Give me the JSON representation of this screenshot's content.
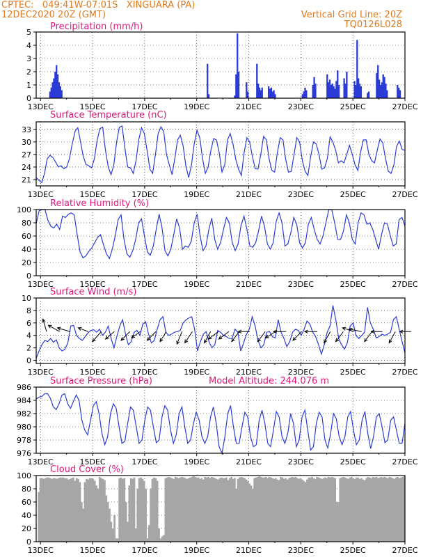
{
  "header": {
    "line1": "CPTEC:   049:41W-07:01S   XINGUARA (PA)",
    "line2": "12DEC2020 20Z (GMT)",
    "right1": "Vertical Grid Line: 20Z",
    "right2": "TQ0126L028"
  },
  "colors": {
    "series": "#2a3bd6",
    "cloud": "#a6a6a6",
    "title": "#e0177a",
    "header": "#e07a1f",
    "arrow": "#000000"
  },
  "x_ticks": [
    "13DEC",
    "15DEC",
    "17DEC",
    "19DEC",
    "21DEC",
    "23DEC",
    "25DEC",
    "27DEC"
  ],
  "chart_data": [
    {
      "id": "precip",
      "type": "bar",
      "title": "Precipitation (mm/h)",
      "ylim": [
        0,
        5
      ],
      "yticks": [
        "0",
        "1",
        "2",
        "3",
        "4",
        "5"
      ],
      "x_range": [
        "12DEC 20Z",
        "27DEC 00Z"
      ],
      "grid": true,
      "bursts": [
        {
          "x": 0.5,
          "y": [
            0.5,
            0.8,
            1.2,
            1.5,
            2.0,
            2.5,
            1.8,
            1.2,
            0.9,
            0.6
          ]
        },
        {
          "x": 6.55,
          "y": [
            2.6,
            0.3
          ]
        },
        {
          "x": 7.6,
          "y": [
            0.2,
            1.8,
            4.9,
            2.0
          ]
        },
        {
          "x": 8.05,
          "y": [
            1.2,
            0.5
          ]
        },
        {
          "x": 8.45,
          "y": [
            2.6,
            1.1,
            0.8,
            0.6,
            0.8
          ]
        },
        {
          "x": 8.9,
          "y": [
            0.9,
            0.7,
            0.8,
            0.5,
            0.6,
            0.3
          ]
        },
        {
          "x": 10.2,
          "y": [
            0.3,
            0.5,
            0.8,
            0.6
          ]
        },
        {
          "x": 10.6,
          "y": [
            1.0,
            1.6,
            1.1
          ]
        },
        {
          "x": 11.15,
          "y": [
            1.8,
            1.2,
            1.4,
            1.0,
            1.1,
            0.9,
            0.7,
            1.3,
            2.1,
            1.0
          ]
        },
        {
          "x": 11.8,
          "y": [
            1.5,
            1.1,
            2.0
          ]
        },
        {
          "x": 12.2,
          "y": [
            1.3,
            1.0,
            4.4,
            1.5,
            1.1,
            0.9
          ]
        },
        {
          "x": 12.7,
          "y": [
            0.4,
            0.5
          ]
        },
        {
          "x": 13.05,
          "y": [
            1.9,
            2.5,
            1.4,
            1.0,
            1.2,
            1.8,
            1.6,
            1.1,
            0.6
          ]
        },
        {
          "x": 13.85,
          "y": [
            1.0,
            0.8,
            0.6
          ]
        }
      ]
    },
    {
      "id": "temp",
      "type": "line",
      "title": "Surface Temperature (nC)",
      "ylim": [
        19.5,
        34.8
      ],
      "yticks": [
        "21",
        "24",
        "27",
        "30",
        "33"
      ],
      "x_range": [
        "12DEC 20Z",
        "27DEC 00Z"
      ],
      "grid": true,
      "values": [
        21.5,
        20.8,
        20.3,
        22.5,
        26.0,
        26.8,
        26.3,
        25.2,
        24.0,
        24.3,
        23.6,
        24.0,
        26.0,
        29.5,
        32.5,
        33.4,
        30.0,
        26.5,
        24.6,
        24.3,
        23.8,
        26.0,
        30.5,
        33.2,
        33.5,
        28.0,
        24.0,
        22.2,
        24.5,
        30.0,
        33.5,
        33.8,
        28.5,
        24.0,
        23.8,
        22.5,
        25.5,
        30.5,
        33.4,
        32.0,
        28.0,
        23.5,
        22.5,
        27.0,
        32.0,
        33.6,
        32.5,
        27.0,
        24.5,
        22.2,
        26.0,
        30.5,
        31.6,
        29.0,
        24.2,
        21.5,
        24.5,
        29.5,
        32.8,
        31.0,
        26.0,
        22.5,
        24.0,
        28.0,
        30.8,
        30.5,
        27.5,
        22.8,
        24.5,
        30.5,
        32.0,
        29.5,
        25.8,
        23.5,
        22.0,
        27.5,
        31.0,
        30.0,
        26.5,
        23.6,
        23.5,
        27.0,
        31.3,
        30.5,
        26.0,
        23.2,
        22.8,
        27.5,
        31.0,
        30.5,
        25.8,
        22.8,
        23.0,
        27.0,
        31.0,
        30.0,
        25.5,
        23.0,
        22.0,
        26.5,
        30.0,
        29.5,
        27.0,
        23.5,
        23.8,
        26.0,
        31.2,
        30.0,
        28.0,
        25.0,
        25.5,
        25.0,
        27.0,
        29.2,
        27.0,
        24.5,
        23.2,
        27.5,
        30.5,
        30.5,
        27.0,
        25.5,
        25.0,
        28.0,
        30.7,
        29.8,
        26.0,
        23.0,
        22.5,
        24.5,
        29.0,
        30.2,
        28.2,
        28.0
      ]
    },
    {
      "id": "rh",
      "type": "line",
      "title": "Relative Humidity (%)",
      "ylim": [
        0,
        100
      ],
      "yticks": [
        "0",
        "20",
        "40",
        "60",
        "80",
        "100"
      ],
      "x_range": [
        "12DEC 20Z",
        "27DEC 00Z"
      ],
      "grid": true,
      "values": [
        79,
        98,
        100,
        100,
        84,
        75,
        72,
        78,
        70,
        90,
        88,
        93,
        95,
        92,
        62,
        36,
        27,
        30,
        37,
        42,
        50,
        58,
        62,
        47,
        33,
        26,
        40,
        60,
        85,
        92,
        55,
        33,
        28,
        38,
        55,
        80,
        86,
        60,
        36,
        31,
        45,
        70,
        93,
        72,
        38,
        30,
        40,
        62,
        86,
        72,
        40,
        45,
        43,
        52,
        80,
        93,
        60,
        38,
        45,
        70,
        87,
        55,
        40,
        50,
        70,
        88,
        80,
        50,
        38,
        48,
        76,
        90,
        70,
        45,
        43,
        50,
        68,
        90,
        75,
        48,
        40,
        50,
        82,
        95,
        80,
        45,
        48,
        65,
        88,
        78,
        50,
        42,
        50,
        78,
        88,
        70,
        55,
        48,
        60,
        80,
        100,
        100,
        80,
        55,
        55,
        68,
        92,
        80,
        55,
        48,
        80,
        95,
        92,
        78,
        80,
        70,
        55,
        40,
        62,
        80,
        78,
        60,
        45,
        48,
        85,
        88,
        75
      ]
    },
    {
      "id": "wind",
      "type": "line",
      "title": "Surface Wind (m/s)",
      "ylim": [
        -0.5,
        10
      ],
      "yticks": [
        "0",
        "2",
        "4",
        "6",
        "8",
        "10"
      ],
      "x_range": [
        "12DEC 20Z",
        "27DEC 00Z"
      ],
      "grid": true,
      "values": [
        0.3,
        1.5,
        2.5,
        3.2,
        3.0,
        3.5,
        2.9,
        3.3,
        2.0,
        1.5,
        1.8,
        2.8,
        5.5,
        5.6,
        4.0,
        3.5,
        3.2,
        3.8,
        4.4,
        4.8,
        4.9,
        4.5,
        5.0,
        4.0,
        4.5,
        5.5,
        3.5,
        2.0,
        3.8,
        5.5,
        6.5,
        4.2,
        2.5,
        3.0,
        4.5,
        4.8,
        4.0,
        5.8,
        6.2,
        4.2,
        2.8,
        3.2,
        5.0,
        6.5,
        7.0,
        4.5,
        4.0,
        4.2,
        4.5,
        4.6,
        4.8,
        6.0,
        6.5,
        6.8,
        7.0,
        5.0,
        1.5,
        3.0,
        4.2,
        4.6,
        3.0,
        2.0,
        2.5,
        4.8,
        4.5,
        4.0,
        3.8,
        3.5,
        3.5,
        5.0,
        4.5,
        1.5,
        2.8,
        4.2,
        5.0,
        7.0,
        5.5,
        3.2,
        2.0,
        2.5,
        4.5,
        4.6,
        3.8,
        3.6,
        6.5,
        4.5,
        3.5,
        2.2,
        3.0,
        4.5,
        5.0,
        4.8,
        4.0,
        5.0,
        6.3,
        5.8,
        4.5,
        3.8,
        2.5,
        1.0,
        2.5,
        4.5,
        5.5,
        8.8,
        6.5,
        3.5,
        2.5,
        1.8,
        2.8,
        5.5,
        6.0,
        4.0,
        3.5,
        4.0,
        4.5,
        8.5,
        6.0,
        5.0,
        3.6,
        3.8,
        4.2,
        4.0,
        4.2,
        4.5,
        6.5,
        7.0,
        5.0,
        3.0,
        1.2
      ],
      "arrows": [
        {
          "x": 0.4,
          "u": -0.3,
          "v": 1.0
        },
        {
          "x": 0.9,
          "u": -0.9,
          "v": 0.5
        },
        {
          "x": 1.3,
          "u": -1.0,
          "v": 0.3
        },
        {
          "x": 2.0,
          "u": -0.8,
          "v": 0.3
        },
        {
          "x": 2.5,
          "u": -0.7,
          "v": -0.8
        },
        {
          "x": 3.0,
          "u": -0.7,
          "v": -0.6
        },
        {
          "x": 3.6,
          "u": -0.7,
          "v": -0.7
        },
        {
          "x": 4.0,
          "u": -0.7,
          "v": -0.5
        },
        {
          "x": 4.6,
          "u": -0.7,
          "v": -0.7
        },
        {
          "x": 5.0,
          "u": -0.5,
          "v": -0.8
        },
        {
          "x": 5.6,
          "u": -0.4,
          "v": -1.0
        },
        {
          "x": 6.0,
          "u": -0.6,
          "v": -0.9
        },
        {
          "x": 6.7,
          "u": -0.5,
          "v": -0.9
        },
        {
          "x": 7.0,
          "u": -0.8,
          "v": -0.6
        },
        {
          "x": 7.4,
          "u": -0.8,
          "v": -0.6
        },
        {
          "x": 7.8,
          "u": -0.6,
          "v": -0.8
        },
        {
          "x": 8.2,
          "u": -0.9,
          "v": 0.0
        },
        {
          "x": 8.8,
          "u": -0.6,
          "v": -0.8
        },
        {
          "x": 9.2,
          "u": -0.8,
          "v": -0.5
        },
        {
          "x": 9.6,
          "u": -1.0,
          "v": 0.0
        },
        {
          "x": 10.2,
          "u": -0.7,
          "v": -0.7
        },
        {
          "x": 10.8,
          "u": -1.0,
          "v": 0.0
        },
        {
          "x": 11.3,
          "u": -0.5,
          "v": -0.9
        },
        {
          "x": 11.8,
          "u": -0.6,
          "v": -0.8
        },
        {
          "x": 12.2,
          "u": -0.9,
          "v": 0.3
        },
        {
          "x": 12.5,
          "u": -1.0,
          "v": 0.2
        },
        {
          "x": 12.9,
          "u": -0.6,
          "v": -0.8
        },
        {
          "x": 13.3,
          "u": -0.9,
          "v": 0.0
        },
        {
          "x": 13.8,
          "u": -0.5,
          "v": -0.9
        },
        {
          "x": 14.4,
          "u": -0.9,
          "v": 0.0
        }
      ]
    },
    {
      "id": "press",
      "type": "line",
      "title": "Surface Pressure (hPa)",
      "subtitle": "Model Altitude: 244.076 m",
      "ylim": [
        976,
        986
      ],
      "yticks": [
        "976",
        "978",
        "980",
        "982",
        "984",
        "986"
      ],
      "x_range": [
        "12DEC 20Z",
        "27DEC 00Z"
      ],
      "grid": true,
      "values": [
        984.2,
        984.5,
        984.6,
        985.0,
        985.0,
        984.3,
        983.0,
        982.6,
        983.5,
        984.8,
        985.0,
        983.5,
        982.8,
        983.8,
        984.8,
        984.0,
        981.0,
        979.5,
        978.8,
        981.0,
        983.2,
        983.8,
        982.0,
        979.0,
        977.3,
        978.5,
        982.0,
        983.5,
        982.8,
        980.0,
        977.5,
        977.8,
        980.5,
        983.0,
        982.5,
        980.0,
        977.5,
        978.0,
        981.0,
        983.0,
        982.5,
        980.0,
        977.6,
        978.0,
        981.5,
        983.2,
        982.5,
        979.5,
        977.5,
        978.8,
        982.0,
        983.0,
        980.0,
        977.5,
        978.0,
        980.5,
        982.2,
        981.0,
        978.5,
        977.5,
        978.5,
        981.5,
        983.0,
        980.5,
        977.0,
        976.0,
        978.5,
        982.0,
        983.2,
        980.0,
        977.5,
        977.5,
        980.0,
        982.2,
        981.5,
        978.5,
        977.0,
        977.3,
        981.0,
        982.5,
        980.5,
        977.5,
        977.0,
        979.5,
        982.3,
        981.5,
        978.5,
        977.5,
        979.0,
        982.0,
        980.5,
        977.0,
        978.0,
        981.5,
        982.5,
        979.5,
        976.5,
        977.0,
        980.5,
        982.2,
        981.5,
        978.0,
        976.8,
        979.0,
        982.0,
        981.2,
        978.5,
        977.3,
        978.5,
        981.5,
        982.3,
        979.5,
        977.3,
        978.0,
        981.0,
        982.3,
        979.0,
        976.7,
        978.5,
        981.5,
        982.0,
        980.0,
        977.6,
        978.0,
        981.0,
        981.5,
        979.5,
        977.5,
        977.5,
        980.5
      ]
    },
    {
      "id": "cloud",
      "type": "bar",
      "title": "Cloud Cover (%)",
      "ylim": [
        0,
        100
      ],
      "yticks": [
        "0",
        "20",
        "40",
        "60",
        "80",
        "100"
      ],
      "x_range": [
        "12DEC 20Z",
        "27DEC 00Z"
      ],
      "grid": true,
      "values": [
        0,
        75,
        96,
        96,
        95,
        96,
        97,
        97,
        96,
        95,
        96,
        96,
        95,
        96,
        97,
        97,
        97,
        96,
        96,
        94,
        95,
        96,
        97,
        92,
        96,
        95,
        90,
        60,
        50,
        90,
        95,
        94,
        96,
        96,
        95,
        92,
        85,
        80,
        98,
        96,
        95,
        93,
        70,
        60,
        50,
        30,
        20,
        40,
        5,
        5,
        96,
        97,
        95,
        96,
        60,
        30,
        85,
        96,
        95,
        97,
        20,
        80,
        96,
        97,
        95,
        92,
        80,
        5,
        25,
        80,
        95,
        97,
        96,
        92,
        20,
        5,
        8,
        10,
        96,
        97,
        98,
        97,
        96,
        95,
        98,
        97,
        96,
        97,
        98,
        97,
        96,
        95,
        96,
        97,
        98,
        99,
        98,
        97,
        97,
        95,
        96,
        94,
        98,
        97,
        98,
        96,
        98,
        97,
        96,
        95,
        94,
        96,
        97,
        96,
        96,
        97,
        93,
        96,
        98,
        95,
        96,
        80,
        95,
        97,
        98,
        97,
        96,
        94,
        92,
        88,
        85,
        80,
        96,
        97,
        98,
        99,
        98,
        97,
        97,
        98,
        96,
        98,
        97,
        96,
        95,
        96,
        94,
        93,
        98,
        97,
        95,
        96,
        94,
        96,
        97,
        98,
        97,
        98,
        96,
        95,
        96,
        94,
        92,
        90,
        94,
        97,
        97,
        98,
        96,
        95,
        98,
        97,
        96,
        95,
        96,
        97,
        96,
        98,
        97,
        98,
        97,
        96,
        60,
        60,
        96,
        97,
        98,
        97,
        96,
        95,
        97,
        98,
        96,
        95,
        97,
        97,
        95,
        96,
        94,
        93,
        96,
        98,
        97,
        96,
        98,
        97,
        98,
        96,
        97,
        98,
        97,
        98,
        97,
        96,
        98,
        97,
        96,
        95,
        97,
        98,
        96,
        97,
        98,
        99
      ]
    }
  ]
}
